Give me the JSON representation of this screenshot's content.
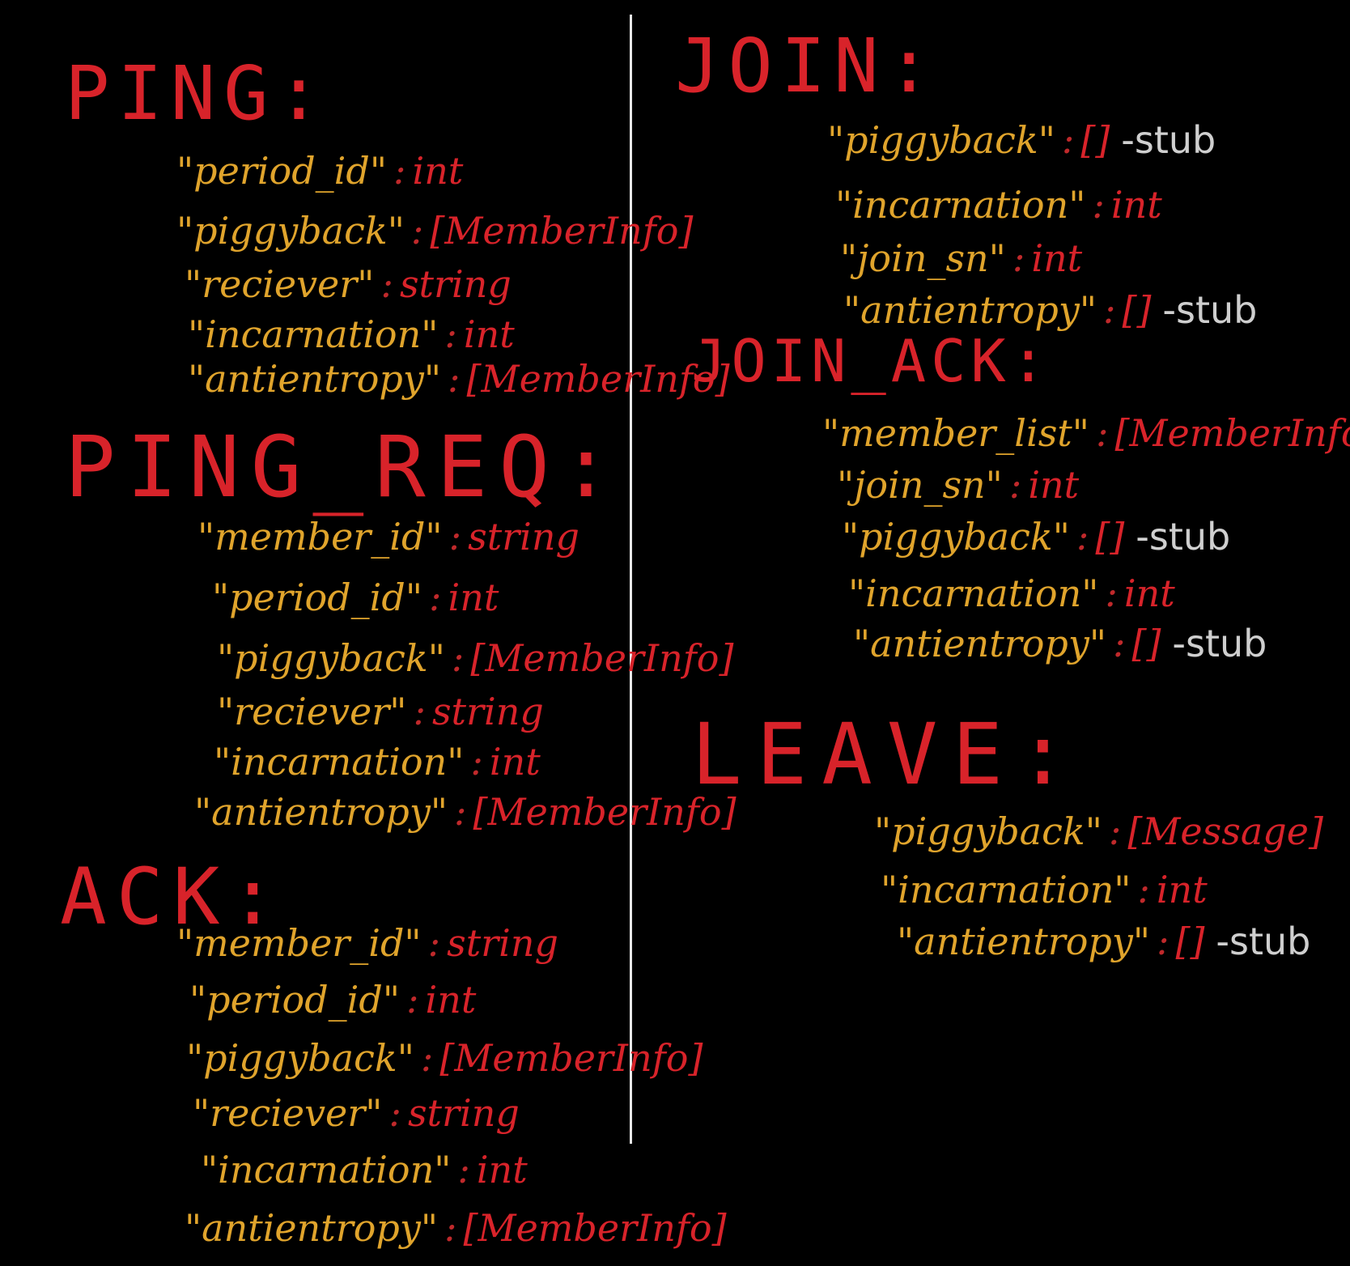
{
  "colors": {
    "background": "#000000",
    "heading": "#d8232a",
    "key": "#e0a42c",
    "type": "#d8232a",
    "note": "#cfcfcf",
    "divider": "#e6e6e6"
  },
  "sections": {
    "ping": {
      "title": "PING:",
      "fields": [
        {
          "key": "\"period_id\"",
          "sep": ":",
          "type": "int",
          "note": ""
        },
        {
          "key": "\"piggyback\"",
          "sep": ":",
          "type": "[MemberInfo]",
          "note": ""
        },
        {
          "key": "\"reciever\"",
          "sep": ":",
          "type": "string",
          "note": ""
        },
        {
          "key": "\"incarnation\"",
          "sep": ":",
          "type": "int",
          "note": ""
        },
        {
          "key": "\"antientropy\"",
          "sep": ":",
          "type": "[MemberInfo]",
          "note": ""
        }
      ]
    },
    "ping_req": {
      "title": "PING_REQ:",
      "fields": [
        {
          "key": "\"member_id\"",
          "sep": ":",
          "type": "string",
          "note": ""
        },
        {
          "key": "\"period_id\"",
          "sep": ":",
          "type": "int",
          "note": ""
        },
        {
          "key": "\"piggyback\"",
          "sep": ":",
          "type": "[MemberInfo]",
          "note": ""
        },
        {
          "key": "\"reciever\"",
          "sep": ":",
          "type": "string",
          "note": ""
        },
        {
          "key": "\"incarnation\"",
          "sep": ":",
          "type": "int",
          "note": ""
        },
        {
          "key": "\"antientropy\"",
          "sep": ":",
          "type": "[MemberInfo]",
          "note": ""
        }
      ]
    },
    "ack": {
      "title": "ACK:",
      "fields": [
        {
          "key": "\"member_id\"",
          "sep": ":",
          "type": "string",
          "note": ""
        },
        {
          "key": "\"period_id\"",
          "sep": ":",
          "type": "int",
          "note": ""
        },
        {
          "key": "\"piggyback\"",
          "sep": ":",
          "type": "[MemberInfo]",
          "note": ""
        },
        {
          "key": "\"reciever\"",
          "sep": ":",
          "type": "string",
          "note": ""
        },
        {
          "key": "\"incarnation\"",
          "sep": ":",
          "type": "int",
          "note": ""
        },
        {
          "key": "\"antientropy\"",
          "sep": ":",
          "type": "[MemberInfo]",
          "note": ""
        }
      ]
    },
    "join": {
      "title": "JOIN:",
      "fields": [
        {
          "key": "\"piggyback\"",
          "sep": ":",
          "type": "[]",
          "note": "-stub"
        },
        {
          "key": "\"incarnation\"",
          "sep": ":",
          "type": "int",
          "note": ""
        },
        {
          "key": "\"join_sn\"",
          "sep": ":",
          "type": "int",
          "note": ""
        },
        {
          "key": "\"antientropy\"",
          "sep": ":",
          "type": "[]",
          "note": "-stub"
        }
      ]
    },
    "join_ack": {
      "title": "JOIN_ACK:",
      "fields": [
        {
          "key": "\"member_list\"",
          "sep": ":",
          "type": "[MemberInfo]",
          "note": ""
        },
        {
          "key": "\"join_sn\"",
          "sep": ":",
          "type": "int",
          "note": ""
        },
        {
          "key": "\"piggyback\"",
          "sep": ":",
          "type": "[]",
          "note": "-stub"
        },
        {
          "key": "\"incarnation\"",
          "sep": ":",
          "type": "int",
          "note": ""
        },
        {
          "key": "\"antientropy\"",
          "sep": ":",
          "type": "[]",
          "note": "-stub"
        }
      ]
    },
    "leave": {
      "title": "LEAVE:",
      "fields": [
        {
          "key": "\"piggyback\"",
          "sep": ":",
          "type": "[Message]",
          "note": ""
        },
        {
          "key": "\"incarnation\"",
          "sep": ":",
          "type": "int",
          "note": ""
        },
        {
          "key": "\"antientropy\"",
          "sep": ":",
          "type": "[]",
          "note": "-stub"
        }
      ]
    }
  }
}
